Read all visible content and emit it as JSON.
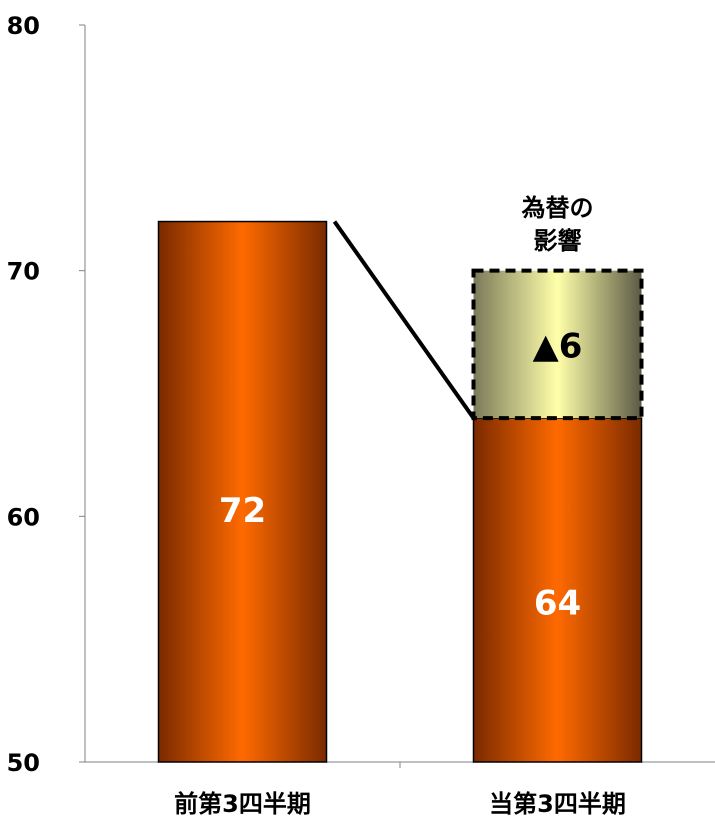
{
  "chart_data": {
    "type": "bar",
    "categories": [
      "前第3四半期",
      "当第3四半期"
    ],
    "values": [
      72,
      64
    ],
    "value_labels": [
      "72",
      "64"
    ],
    "ylim": [
      50,
      80
    ],
    "yticks": [
      50,
      60,
      70,
      80
    ],
    "ytick_labels": [
      "50",
      "60",
      "70",
      "80"
    ],
    "grid": false,
    "title": "",
    "xlabel": "",
    "ylabel": "",
    "fx_effect": {
      "title_lines": [
        "為替の",
        "影響"
      ],
      "value": 6,
      "label": "▲6",
      "base": 64,
      "top": 70
    },
    "colors": {
      "bar_dark": "#7a2a00",
      "bar_light": "#ff6a00",
      "fx_dark": "#5a5a45",
      "fx_light": "#ffffaa"
    }
  }
}
